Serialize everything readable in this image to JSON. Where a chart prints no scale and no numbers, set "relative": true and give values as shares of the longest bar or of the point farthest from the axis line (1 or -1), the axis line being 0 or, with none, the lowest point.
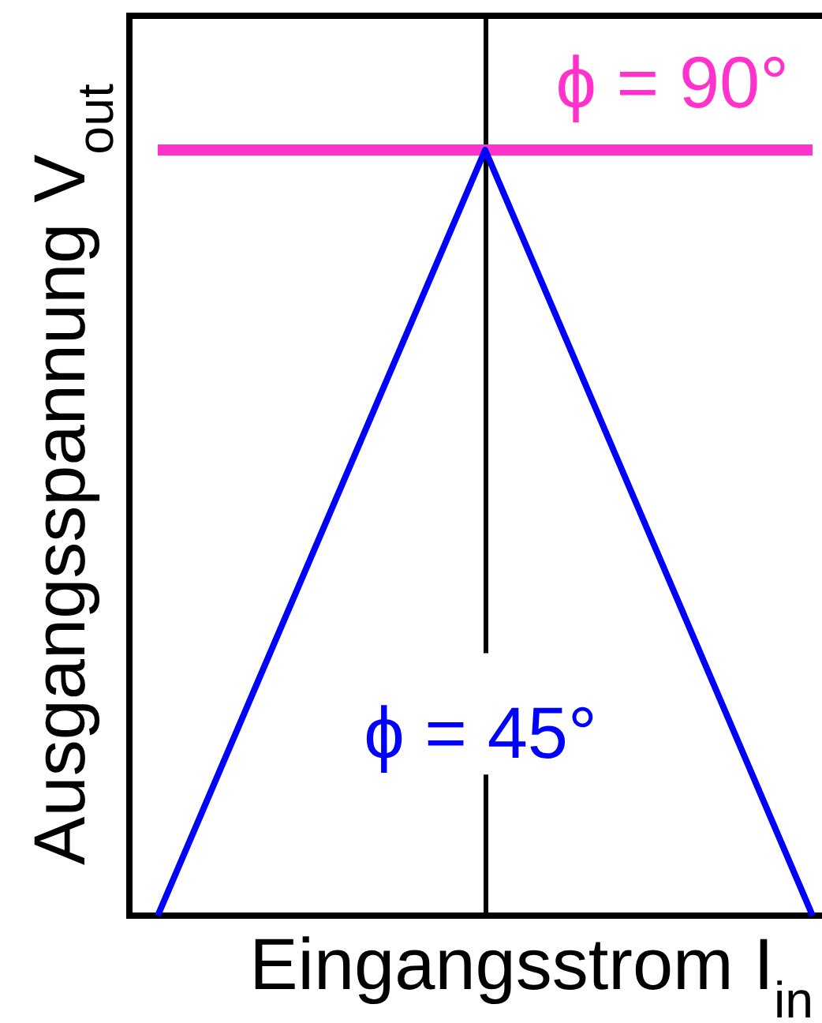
{
  "chart_data": {
    "type": "line",
    "xlabel": "Eingangsstrom I$_{in}$",
    "ylabel": "Ausgangsspannung V$_{out}$",
    "relative": true,
    "categories": [
      null,
      null,
      null
    ],
    "series": [
      {
        "name": "ϕ = 90°",
        "color": "#ff33cc",
        "values": [
          1,
          1,
          1
        ]
      },
      {
        "name": "ϕ = 45°",
        "color": "#0000ff",
        "values": [
          0,
          1,
          0
        ]
      }
    ],
    "legend": false,
    "grid": false,
    "marker": "none",
    "line_style": "solid"
  }
}
